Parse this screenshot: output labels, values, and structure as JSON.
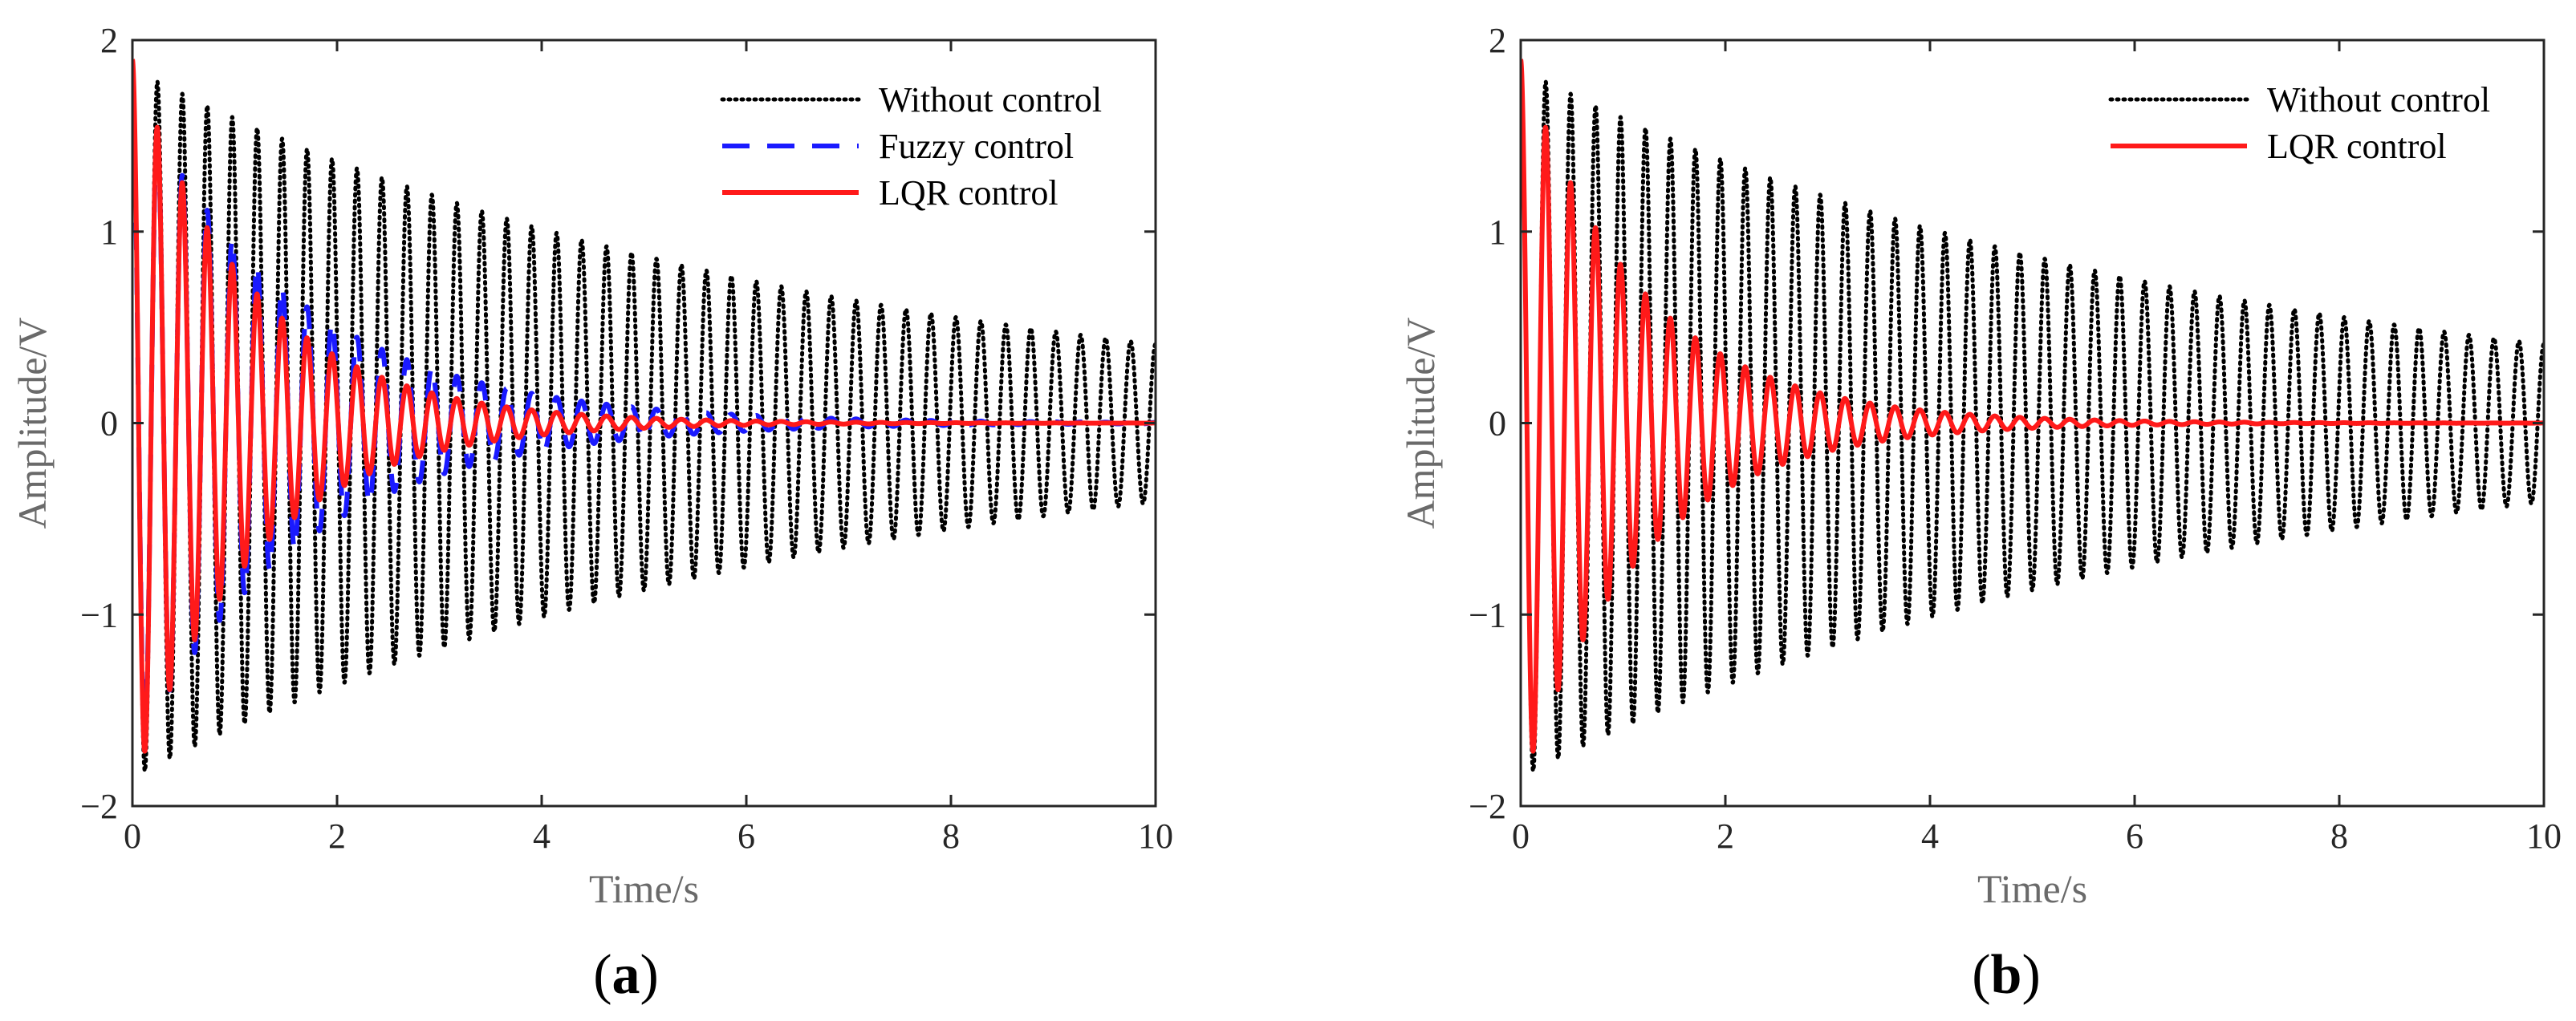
{
  "chart_data": [
    {
      "type": "line",
      "panel_label": "(a)",
      "panel_letter": "a",
      "xlabel": "Time/s",
      "ylabel": "Amplitude/V",
      "xlim": [
        0,
        10
      ],
      "ylim": [
        -2,
        2
      ],
      "xticks": [
        0,
        2,
        4,
        6,
        8,
        10
      ],
      "yticks": [
        -2,
        -1,
        0,
        1,
        2
      ],
      "xtick_labels": [
        "0",
        "2",
        "4",
        "6",
        "8",
        "10"
      ],
      "ytick_labels": [
        "−2",
        "−1",
        "0",
        "1",
        "2"
      ],
      "grid": false,
      "legend_position": "top-right",
      "frequency_hz": 4.1,
      "series": [
        {
          "name": "Without control",
          "initial_amplitude": 1.85,
          "decay_rate_per_s": 0.15,
          "color": "#000000",
          "style": "dotted"
        },
        {
          "name": "Fuzzy control",
          "initial_amplitude": 1.75,
          "decay_rate_per_s": 0.62,
          "color": "#1a1aff",
          "style": "dashed"
        },
        {
          "name": "LQR control",
          "initial_amplitude": 1.9,
          "decay_rate_per_s": 0.85,
          "color": "#ff1a1a",
          "style": "solid"
        }
      ]
    },
    {
      "type": "line",
      "panel_label": "(b)",
      "panel_letter": "b",
      "xlabel": "Time/s",
      "ylabel": "Amplitude/V",
      "xlim": [
        0,
        10
      ],
      "ylim": [
        -2,
        2
      ],
      "xticks": [
        0,
        2,
        4,
        6,
        8,
        10
      ],
      "yticks": [
        -2,
        -1,
        0,
        1,
        2
      ],
      "xtick_labels": [
        "0",
        "2",
        "4",
        "6",
        "8",
        "10"
      ],
      "ytick_labels": [
        "−2",
        "−1",
        "0",
        "1",
        "2"
      ],
      "grid": false,
      "legend_position": "top-right",
      "frequency_hz": 4.1,
      "series": [
        {
          "name": "Without control",
          "initial_amplitude": 1.85,
          "decay_rate_per_s": 0.15,
          "color": "#000000",
          "style": "dotted"
        },
        {
          "name": "LQR control",
          "initial_amplitude": 1.9,
          "decay_rate_per_s": 0.85,
          "color": "#ff1a1a",
          "style": "solid"
        }
      ]
    }
  ]
}
